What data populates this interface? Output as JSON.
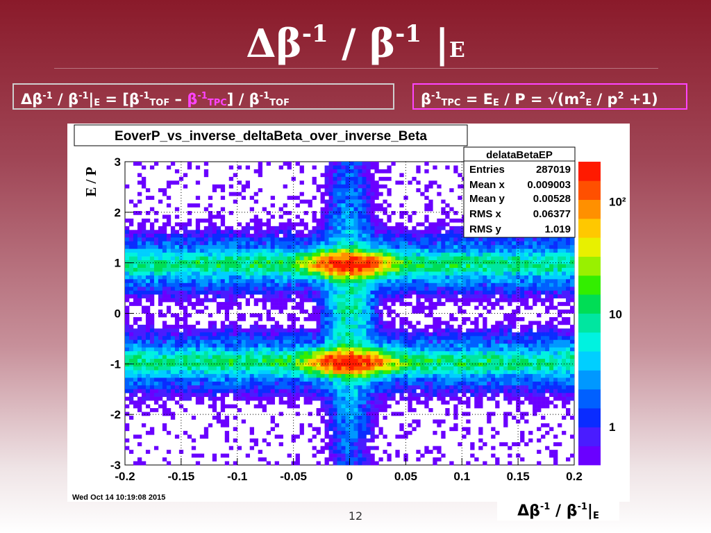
{
  "slide": {
    "title": {
      "main": "Δβ",
      "sup1": "-1",
      "mid": " / β",
      "sup2": "-1",
      "bar": " |",
      "sub": "E"
    },
    "formula_left": {
      "a": "Δβ",
      "s1": "-1",
      "b": " / β",
      "s2": "-1",
      "c": "|",
      "d": "E",
      "e": " = [β",
      "s3": "-1",
      "f": "TOF",
      "g": " – ",
      "h": "β",
      "s4": "-1",
      "i": "TPC",
      "j": "] / β",
      "s5": "-1",
      "k": "TOF"
    },
    "formula_right": {
      "a": "β",
      "s1": "-1",
      "b": "TPC",
      "c": " = E",
      "d": "E",
      "e": " / P = √(m",
      "s2": "2",
      "f": "E",
      "g": " / p",
      "s3": "2",
      "h": " +1)"
    },
    "page_number": "12",
    "xlabel": {
      "a": "Δβ",
      "s1": "-1",
      "b": " / β",
      "s2": "-1",
      "c": "|",
      "d": "E"
    }
  },
  "colors": {
    "accent_magenta": "#ff44ff",
    "title_text": "#ffffff",
    "background_top": "#8a1a2a"
  },
  "chart_data": {
    "type": "heatmap",
    "title": "EoverP_vs_inverse_deltaBeta_over_inverse_Beta",
    "xlabel": "Δβ⁻¹ / β⁻¹|E",
    "ylabel": "E / P",
    "xlim": [
      -0.2,
      0.2
    ],
    "ylim": [
      -3,
      3
    ],
    "x_ticks": [
      "-0.2",
      "-0.15",
      "-0.1",
      "-0.05",
      "0",
      "0.05",
      "0.1",
      "0.15",
      "0.2"
    ],
    "y_ticks": [
      "3",
      "2",
      "1",
      "0",
      "-1",
      "-2",
      "-3"
    ],
    "z_scale": "log",
    "z_ticks": [
      "10²",
      "10",
      "1"
    ],
    "grid": true,
    "hotspots": [
      {
        "x": 0.0,
        "y": 0.97,
        "peak": "~300"
      },
      {
        "x": 0.0,
        "y": -0.97,
        "peak": "~300"
      }
    ],
    "stats_box": {
      "name": "delataBetaEP",
      "rows": [
        {
          "label": "Entries",
          "value": "287019"
        },
        {
          "label": "Mean x",
          "value": "0.009003"
        },
        {
          "label": "Mean y",
          "value": "0.00528"
        },
        {
          "label": "RMS x",
          "value": "0.06377"
        },
        {
          "label": "RMS y",
          "value": "1.019"
        }
      ]
    },
    "timestamp": "Wed Oct 14 10:19:08 2015"
  }
}
